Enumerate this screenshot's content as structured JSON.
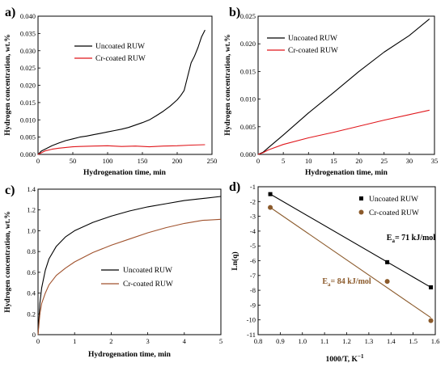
{
  "colors": {
    "black": "#000000",
    "red": "#e0161b",
    "brown": "#a0522d",
    "bronze": "#8b5a2b"
  },
  "chart_data": [
    {
      "panel_label": "a)",
      "type": "line",
      "xlabel": "Hydrogenation time, min",
      "ylabel": "Hydrogen concentration, wt.%",
      "xlim": [
        0,
        250
      ],
      "ylim": [
        0,
        0.04
      ],
      "xticks": [
        "0",
        "50",
        "100",
        "150",
        "200",
        "250"
      ],
      "yticks": [
        "0.000",
        "0.005",
        "0.010",
        "0.015",
        "0.020",
        "0.025",
        "0.030",
        "0.035",
        "0.040"
      ],
      "legend_position": "top-right",
      "series": [
        {
          "name": "Uncoated RUW",
          "color": "#000000",
          "x": [
            0,
            5,
            10,
            20,
            30,
            40,
            50,
            60,
            70,
            80,
            90,
            100,
            110,
            120,
            130,
            140,
            150,
            160,
            170,
            180,
            190,
            200,
            205,
            210,
            215,
            220,
            225,
            230,
            235,
            240
          ],
          "y": [
            0,
            0.001,
            0.0015,
            0.0025,
            0.0033,
            0.004,
            0.0045,
            0.005,
            0.0053,
            0.0057,
            0.0061,
            0.0065,
            0.0069,
            0.0073,
            0.0078,
            0.0085,
            0.0092,
            0.01,
            0.0112,
            0.0125,
            0.014,
            0.0158,
            0.017,
            0.0185,
            0.0225,
            0.0265,
            0.0285,
            0.031,
            0.034,
            0.036
          ]
        },
        {
          "name": "Cr-coated RUW",
          "color": "#e0161b",
          "x": [
            0,
            10,
            20,
            30,
            40,
            50,
            60,
            80,
            100,
            120,
            140,
            160,
            180,
            200,
            220,
            240
          ],
          "y": [
            0,
            0.001,
            0.0015,
            0.0018,
            0.002,
            0.0022,
            0.0023,
            0.0024,
            0.0025,
            0.0023,
            0.0024,
            0.0022,
            0.0024,
            0.0025,
            0.0027,
            0.0028
          ]
        }
      ]
    },
    {
      "panel_label": "b)",
      "type": "line",
      "xlabel": "Hydrogenation time, min",
      "ylabel": "Hydrogen concentration, wt.%",
      "xlim": [
        0,
        35
      ],
      "ylim": [
        0,
        0.025
      ],
      "xticks": [
        "0",
        "5",
        "10",
        "15",
        "20",
        "25",
        "30",
        "35"
      ],
      "yticks": [
        "0.000",
        "0.005",
        "0.010",
        "0.015",
        "0.020",
        "0.025"
      ],
      "legend_position": "top-left",
      "series": [
        {
          "name": "Uncoated RUW",
          "color": "#000000",
          "x": [
            0,
            1,
            2,
            5,
            10,
            15,
            20,
            25,
            30,
            34
          ],
          "y": [
            0,
            0.0004,
            0.0012,
            0.0035,
            0.0075,
            0.0112,
            0.015,
            0.0185,
            0.0215,
            0.0245
          ]
        },
        {
          "name": "Cr-coated RUW",
          "color": "#e0161b",
          "x": [
            0,
            1,
            2,
            5,
            10,
            15,
            20,
            25,
            30,
            34
          ],
          "y": [
            0,
            0.0003,
            0.0008,
            0.0018,
            0.003,
            0.004,
            0.0051,
            0.0062,
            0.0072,
            0.008
          ]
        }
      ]
    },
    {
      "panel_label": "c)",
      "type": "line",
      "xlabel": "Hydrogenation time, min",
      "ylabel": "Hydrogen concentration, wt.%",
      "xlim": [
        0,
        5
      ],
      "ylim": [
        0,
        1.4
      ],
      "xticks": [
        "0",
        "1",
        "2",
        "3",
        "4",
        "5"
      ],
      "yticks": [
        "0",
        "0.2",
        "0.4",
        "0.6",
        "0.8",
        "1.0",
        "1.2",
        "1.4"
      ],
      "legend_position": "bottom-right",
      "series": [
        {
          "name": "Uncoated RUW",
          "color": "#000000",
          "x": [
            0,
            0.05,
            0.1,
            0.2,
            0.3,
            0.5,
            0.75,
            1.0,
            1.5,
            2.0,
            2.5,
            3.0,
            3.5,
            4.0,
            4.5,
            5.0
          ],
          "y": [
            0,
            0.3,
            0.45,
            0.62,
            0.73,
            0.85,
            0.94,
            1.0,
            1.08,
            1.14,
            1.19,
            1.23,
            1.26,
            1.29,
            1.31,
            1.33
          ]
        },
        {
          "name": "Cr-coated RUW",
          "color": "#a0522d",
          "x": [
            0,
            0.05,
            0.1,
            0.2,
            0.3,
            0.5,
            0.75,
            1.0,
            1.5,
            2.0,
            2.5,
            3.0,
            3.5,
            4.0,
            4.5,
            5.0
          ],
          "y": [
            0,
            0.2,
            0.3,
            0.4,
            0.48,
            0.57,
            0.64,
            0.7,
            0.79,
            0.86,
            0.92,
            0.98,
            1.03,
            1.07,
            1.1,
            1.11
          ]
        }
      ]
    },
    {
      "panel_label": "d)",
      "type": "scatter",
      "xlabel": "1000/T, K",
      "xlabel_sup": "−1",
      "ylabel": "Ln(q)",
      "xlim": [
        0.8,
        1.6
      ],
      "ylim": [
        -11,
        -1
      ],
      "xticks": [
        "0.8",
        "0.9",
        "1.0",
        "1.1",
        "1.2",
        "1.3",
        "1.4",
        "1.5",
        "1.6"
      ],
      "yticks": [
        "-1",
        "-2",
        "-3",
        "-4",
        "-5",
        "-6",
        "-7",
        "-8",
        "-9",
        "-10",
        "-11"
      ],
      "legend_position": "top-right",
      "series": [
        {
          "name": "Uncoated RUW",
          "color": "#000000",
          "marker": "square",
          "x": [
            0.855,
            1.383,
            1.58
          ],
          "y": [
            -1.5,
            -6.1,
            -7.8
          ],
          "fit": [
            [
              0.855,
              -1.5
            ],
            [
              1.58,
              -7.8
            ]
          ]
        },
        {
          "name": "Cr-coated RUW",
          "color": "#8b5a2b",
          "marker": "circle",
          "x": [
            0.855,
            1.383,
            1.58
          ],
          "y": [
            -2.4,
            -7.4,
            -10.05
          ],
          "fit": [
            [
              0.855,
              -2.4
            ],
            [
              1.58,
              -9.85
            ]
          ]
        }
      ],
      "annotations": [
        {
          "main": "E",
          "sub": "a",
          "rest": "= 71 kJ/mol",
          "color": "#000000",
          "x": 1.38,
          "y": -4.6
        },
        {
          "main": "E",
          "sub": "a",
          "rest": "= 84 kJ/mol",
          "color": "#8b5a2b",
          "x": 1.09,
          "y": -7.55
        }
      ]
    }
  ]
}
